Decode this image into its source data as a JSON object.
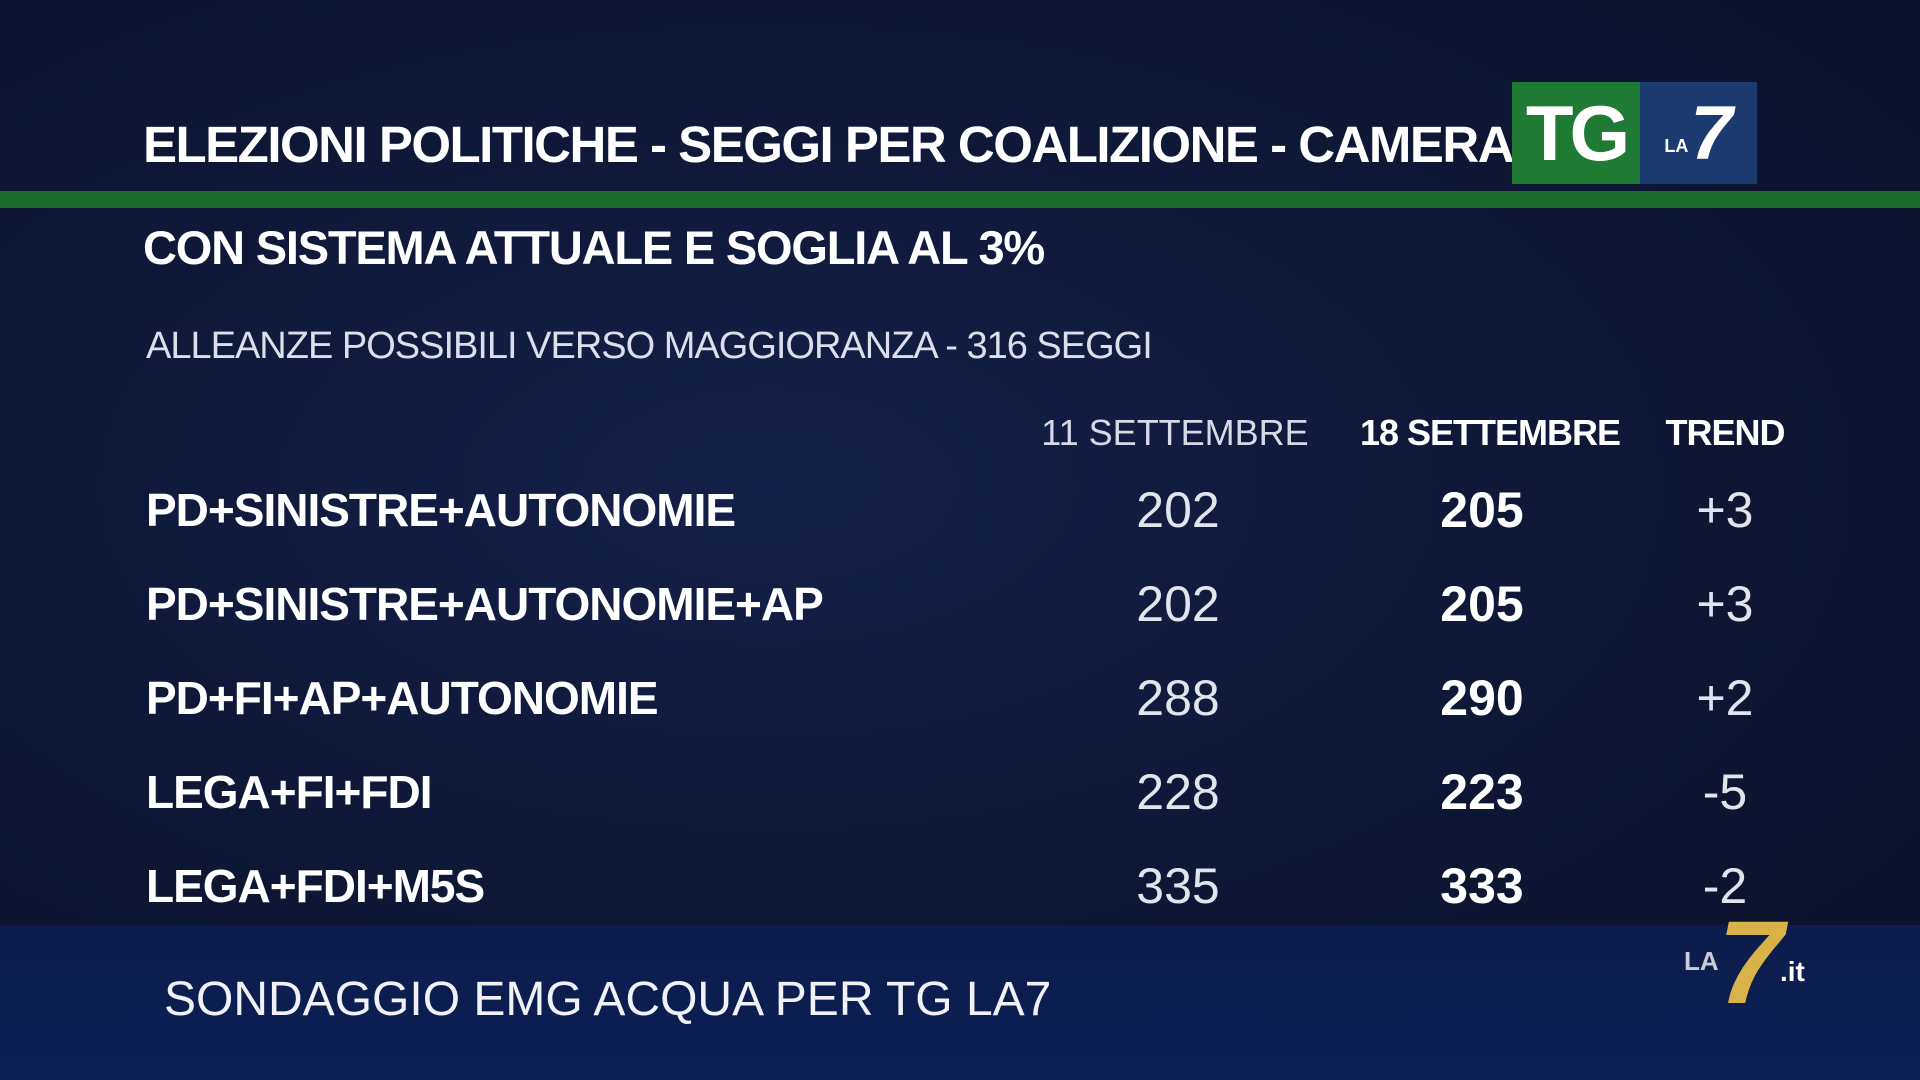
{
  "header": {
    "title": "ELEZIONI POLITICHE - SEGGI PER COALIZIONE - CAMERA",
    "subtitle": "CON SISTEMA ATTUALE E SOGLIA AL 3%",
    "caption": "ALLEANZE POSSIBILI VERSO MAGGIORANZA - 316 SEGGI"
  },
  "logo": {
    "tg": "TG",
    "la": "LA",
    "seven": "7"
  },
  "table": {
    "columns": [
      "11 SETTEMBRE",
      "18 SETTEMBRE",
      "TREND"
    ],
    "rows": [
      {
        "label": "PD+SINISTRE+AUTONOMIE",
        "sep11": "202",
        "sep18": "205",
        "trend": "+3"
      },
      {
        "label": "PD+SINISTRE+AUTONOMIE+AP",
        "sep11": "202",
        "sep18": "205",
        "trend": "+3"
      },
      {
        "label": "PD+FI+AP+AUTONOMIE",
        "sep11": "288",
        "sep18": "290",
        "trend": "+2"
      },
      {
        "label": "LEGA+FI+FDI",
        "sep11": "228",
        "sep18": "223",
        "trend": "-5"
      },
      {
        "label": "LEGA+FDI+M5S",
        "sep11": "335",
        "sep18": "333",
        "trend": "-2"
      }
    ]
  },
  "footer": {
    "source": "SONDAGGIO EMG ACQUA PER TG LA7",
    "watermark_la": "LA",
    "watermark_seven": "7",
    "watermark_it": ".it"
  },
  "colors": {
    "background": "#0f1838",
    "accent_green": "#1f6b2e",
    "logo_green": "#1f7a34",
    "logo_blue": "#1b3a70",
    "watermark_gold": "#d9b24a"
  }
}
